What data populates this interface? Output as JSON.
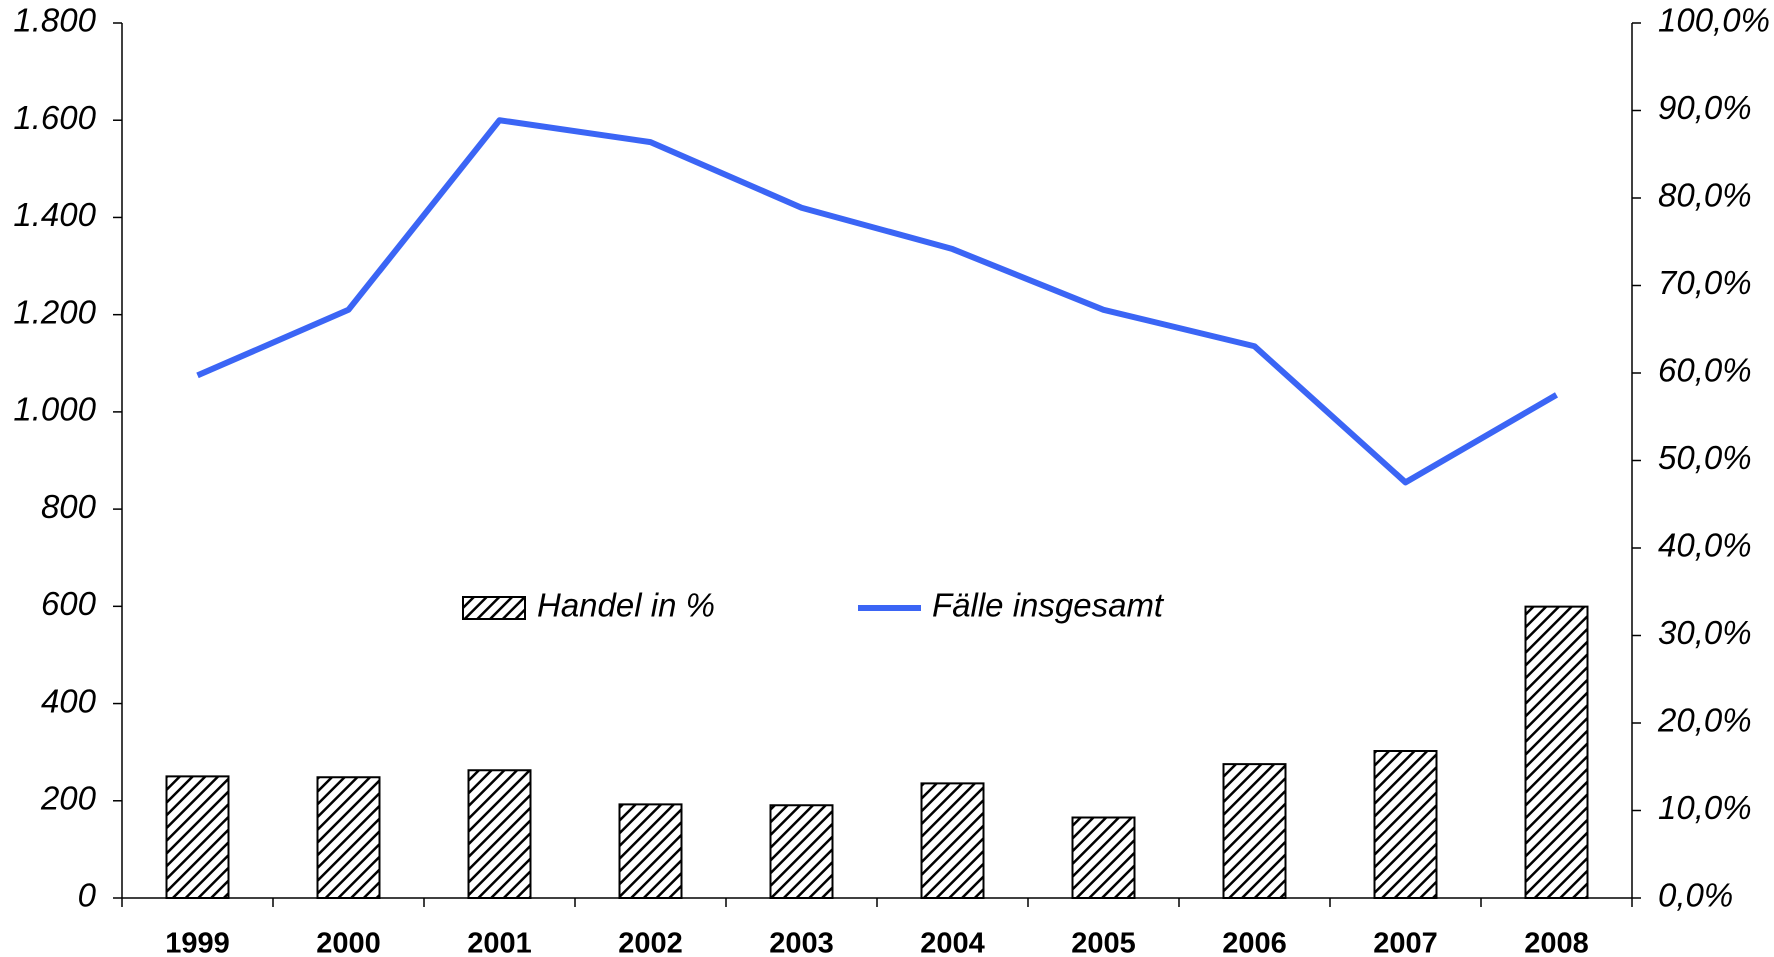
{
  "chart_data": {
    "type": "bar_line",
    "categories": [
      "1999",
      "2000",
      "2001",
      "2002",
      "2003",
      "2004",
      "2005",
      "2006",
      "2007",
      "2008"
    ],
    "series": [
      {
        "name": "Handel in %",
        "type": "bar",
        "axis": "y2",
        "color": "#000000",
        "values": [
          13.9,
          13.8,
          14.6,
          10.7,
          10.6,
          13.1,
          9.2,
          15.3,
          16.8,
          33.3
        ]
      },
      {
        "name": "Fälle insgesamt",
        "type": "line",
        "axis": "y",
        "color": "#3b65f5",
        "values": [
          1075,
          1210,
          1600,
          1555,
          1420,
          1335,
          1210,
          1135,
          855,
          1035
        ]
      }
    ],
    "ylim": [
      0,
      1800
    ],
    "yticks": [
      0,
      200,
      400,
      600,
      800,
      {
        "value": 1000,
        "label": "1.000"
      },
      {
        "value": 1200,
        "label": "1.200"
      },
      {
        "value": 1400,
        "label": "1.400"
      },
      {
        "value": 1600,
        "label": "1.600"
      },
      {
        "value": 1800,
        "label": "1.800"
      }
    ],
    "y2lim": [
      0,
      100
    ],
    "y2ticks": [
      {
        "value": 0,
        "label": "0,0%"
      },
      {
        "value": 10,
        "label": "10,0%"
      },
      {
        "value": 20,
        "label": "20,0%"
      },
      {
        "value": 30,
        "label": "30,0%"
      },
      {
        "value": 40,
        "label": "40,0%"
      },
      {
        "value": 50,
        "label": "50,0%"
      },
      {
        "value": 60,
        "label": "60,0%"
      },
      {
        "value": 70,
        "label": "70,0%"
      },
      {
        "value": 80,
        "label": "80,0%"
      },
      {
        "value": 90,
        "label": "90,0%"
      },
      {
        "value": 100,
        "label": "100,0%"
      }
    ]
  }
}
